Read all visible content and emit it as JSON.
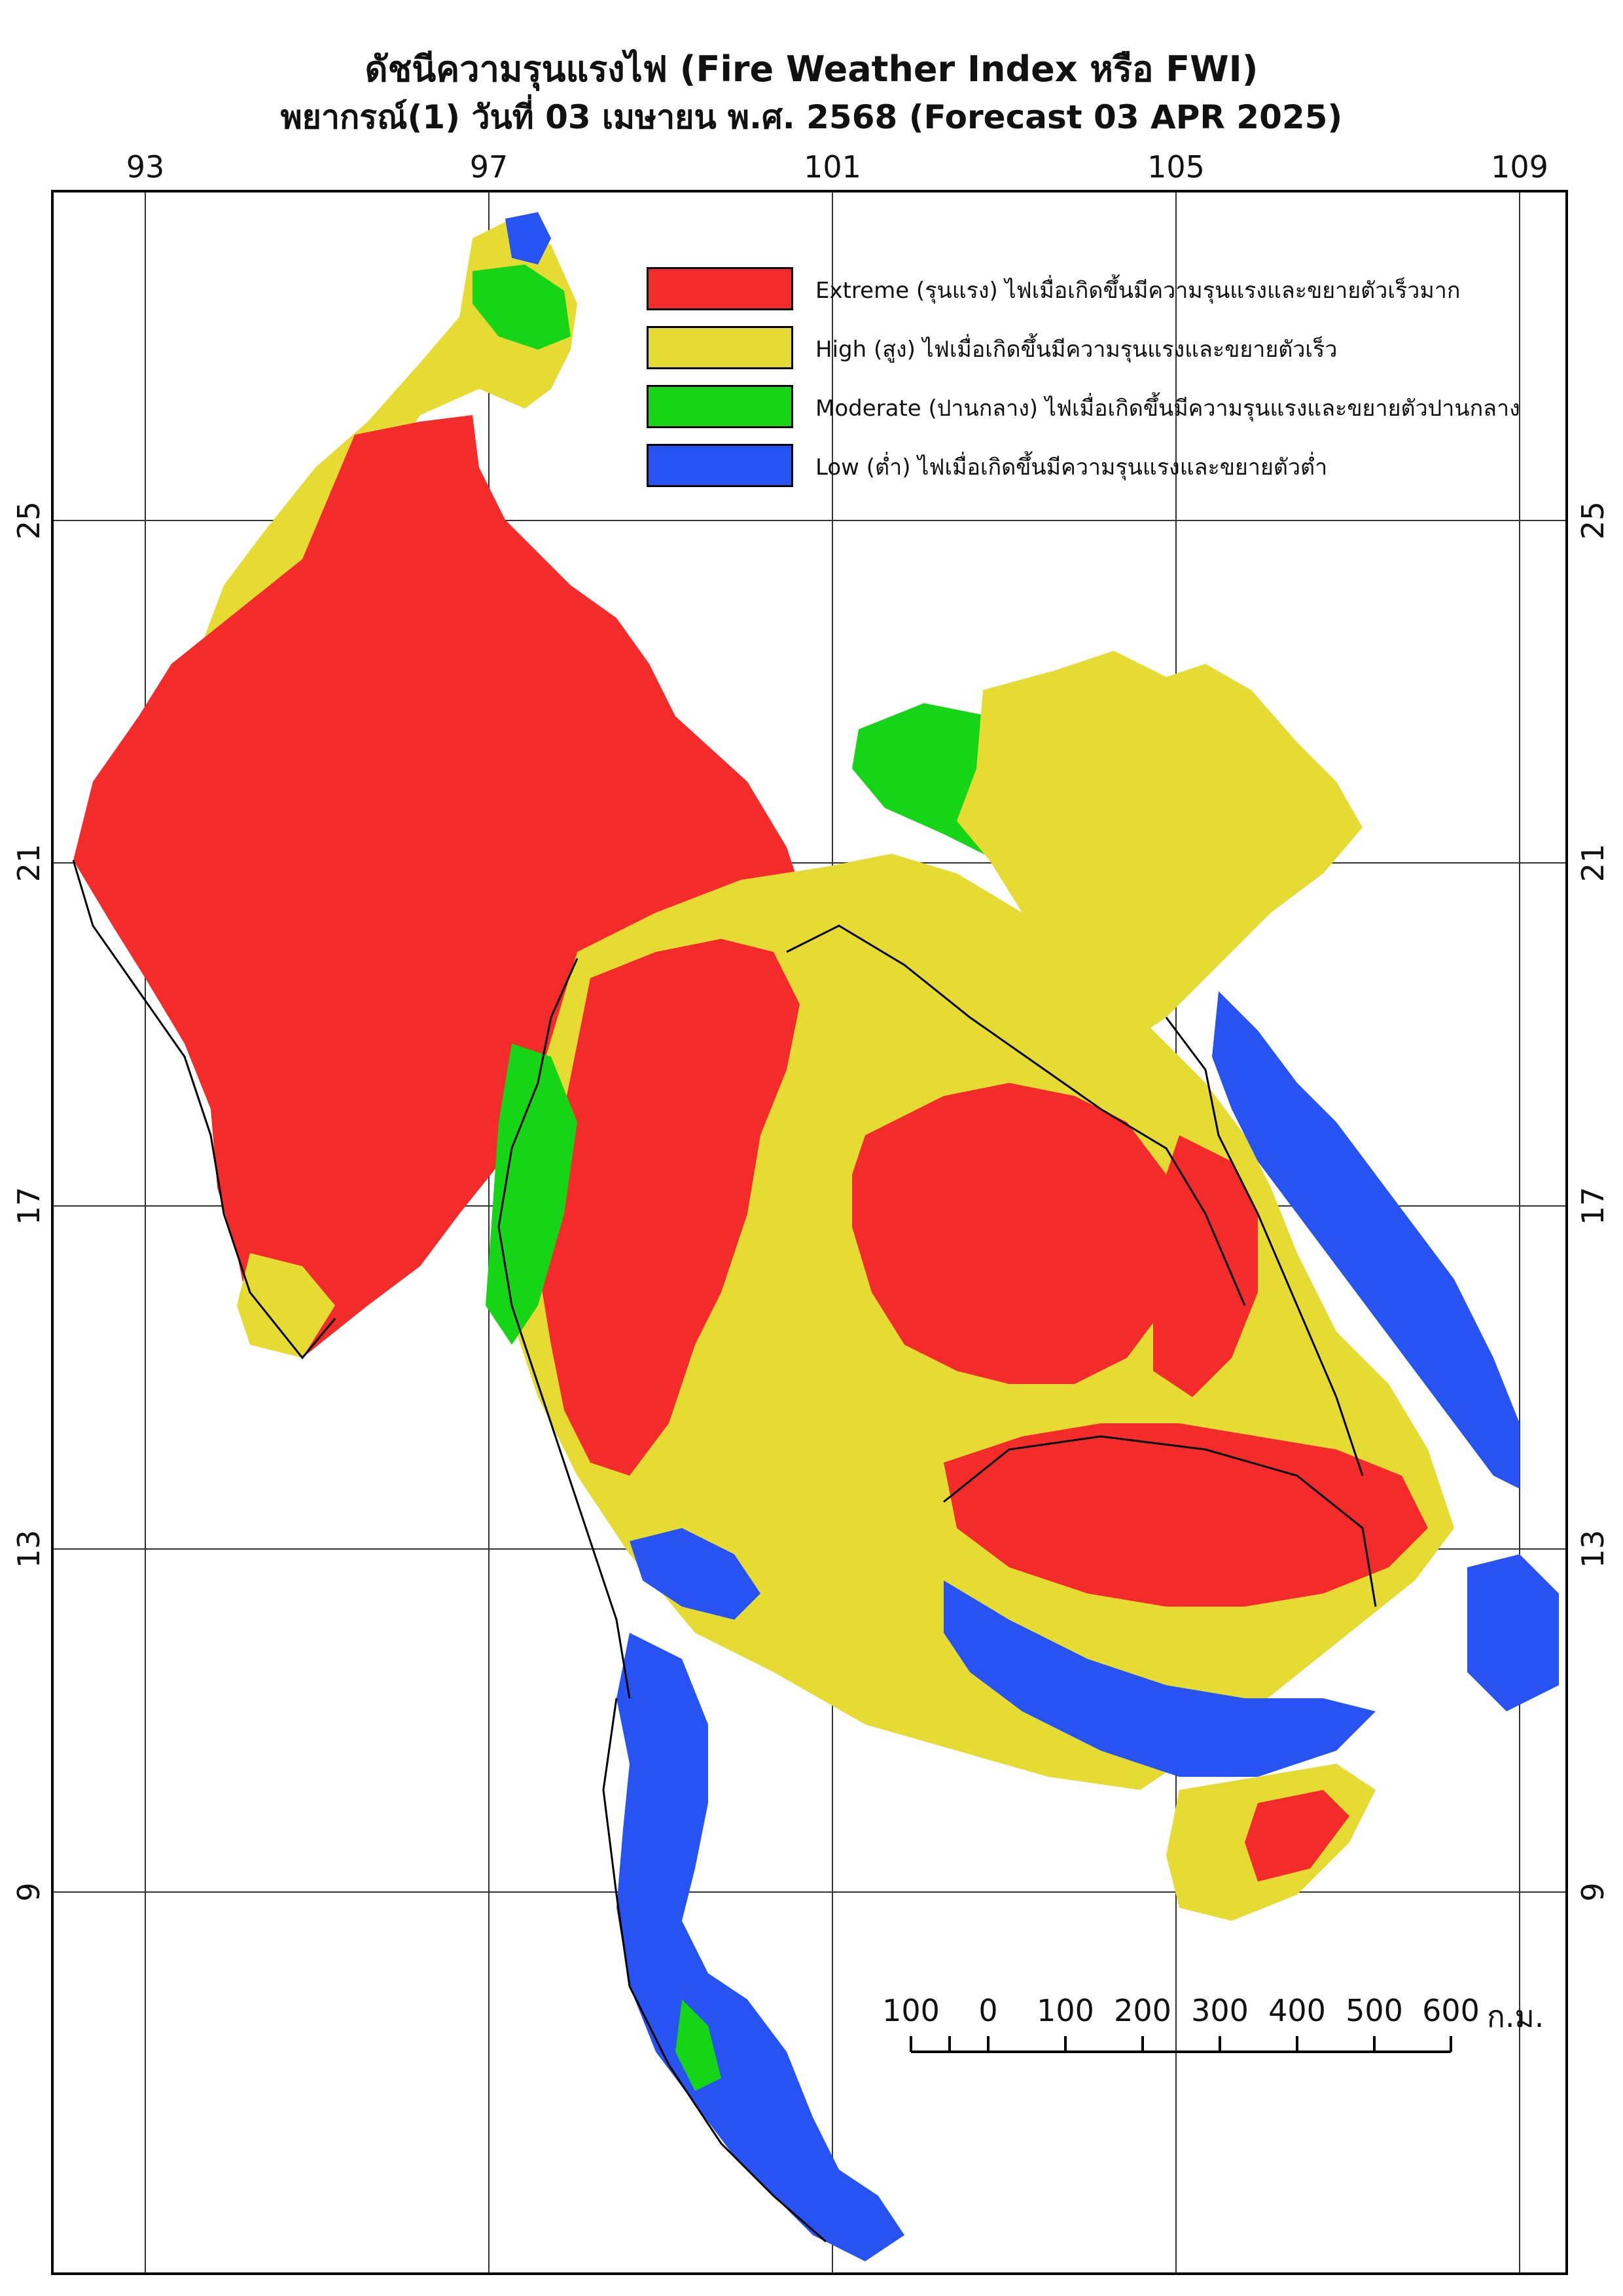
{
  "title": {
    "line1": "ดัชนีความรุนแรงไฟ (Fire Weather Index หรือ FWI)",
    "line2": "พยากรณ์(1) วันที่ 03 เมษายน พ.ศ. 2568 (Forecast 03 APR 2025)"
  },
  "axes": {
    "longitude_ticks": [
      "93",
      "97",
      "101",
      "105",
      "109"
    ],
    "latitude_ticks": [
      "25",
      "21",
      "17",
      "13",
      "9"
    ]
  },
  "legend": {
    "items": [
      {
        "label": "Extreme (รุนแรง) ไฟเมื่อเกิดขึ้นมีความรุนแรงและขยายตัวเร็วมาก",
        "color": "#f42b2b"
      },
      {
        "label": "High (สูง) ไฟเมื่อเกิดขึ้นมีความรุนแรงและขยายตัวเร็ว",
        "color": "#e6db33"
      },
      {
        "label": "Moderate (ปานกลาง) ไฟเมื่อเกิดขึ้นมีความรุนแรงและขยายตัวปานกลาง",
        "color": "#16d416"
      },
      {
        "label": "Low (ต่ำ) ไฟเมื่อเกิดขึ้นมีความรุนแรงและขยายตัวต่ำ",
        "color": "#2753f2"
      }
    ]
  },
  "scale_bar": {
    "labels": [
      "100",
      "0",
      "100",
      "200",
      "300",
      "400",
      "500",
      "600"
    ],
    "unit": "ก.ม."
  }
}
